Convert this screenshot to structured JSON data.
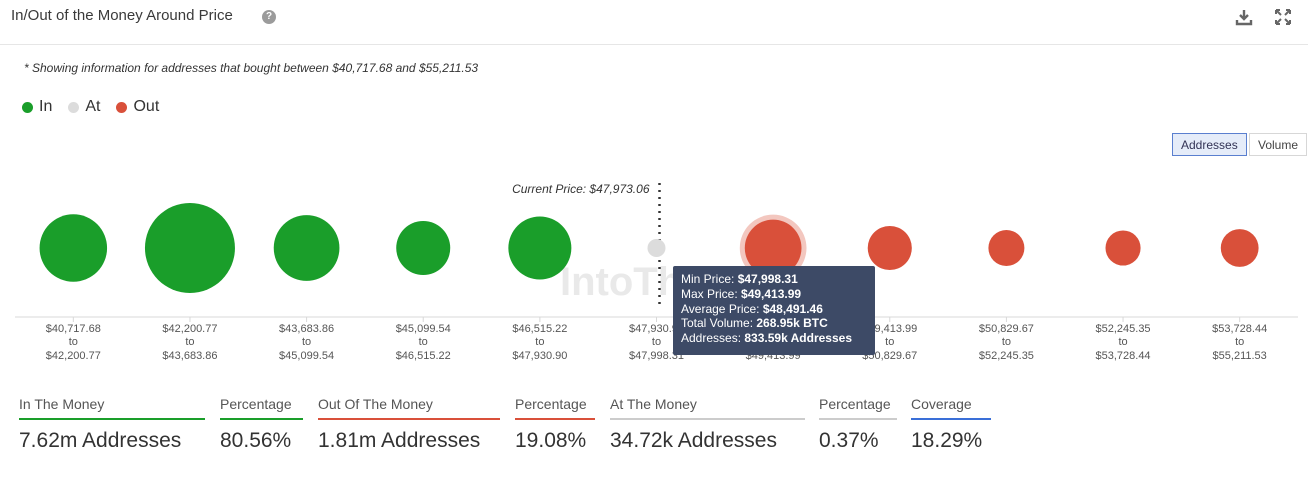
{
  "header": {
    "title": "In/Out of the Money Around Price",
    "help_icon": "question-circle-icon",
    "download_icon": "download-icon",
    "expand_icon": "expand-icon"
  },
  "note": "* Showing information for addresses that bought between $40,717.68 and $55,211.53",
  "legend": [
    {
      "label": "In",
      "color": "#1a9e2a"
    },
    {
      "label": "At",
      "color": "#dcdcdc"
    },
    {
      "label": "Out",
      "color": "#d9503a"
    }
  ],
  "toggles": {
    "addresses": "Addresses",
    "volume": "Volume",
    "active": "addresses"
  },
  "watermark": "IntoThe",
  "chart_data": {
    "type": "bubble",
    "current_price_label": "Current Price: $47,973.06",
    "current_price": 47973.06,
    "clusters": [
      {
        "from": "$40,717.68",
        "to": "$42,200.77",
        "status": "in",
        "size": 0.75
      },
      {
        "from": "$42,200.77",
        "to": "$43,683.86",
        "status": "in",
        "size": 1.0
      },
      {
        "from": "$43,683.86",
        "to": "$45,099.54",
        "status": "in",
        "size": 0.73
      },
      {
        "from": "$45,099.54",
        "to": "$46,515.22",
        "status": "in",
        "size": 0.6
      },
      {
        "from": "$46,515.22",
        "to": "$47,930.90",
        "status": "in",
        "size": 0.7
      },
      {
        "from": "$47,930.90",
        "to": "$47,998.31",
        "status": "at",
        "size": 0.2
      },
      {
        "from": "$47,998.31",
        "to": "$49,413.99",
        "status": "out",
        "size": 0.63,
        "highlighted": true
      },
      {
        "from": "$49,413.99",
        "to": "$50,829.67",
        "status": "out",
        "size": 0.49
      },
      {
        "from": "$50,829.67",
        "to": "$52,245.35",
        "status": "out",
        "size": 0.4
      },
      {
        "from": "$52,245.35",
        "to": "$53,728.44",
        "status": "out",
        "size": 0.39
      },
      {
        "from": "$53,728.44",
        "to": "$55,211.53",
        "status": "out",
        "size": 0.42
      }
    ],
    "to_word": "to"
  },
  "tooltip": {
    "min_label": "Min Price: ",
    "min_value": "$47,998.31",
    "max_label": "Max Price: ",
    "max_value": "$49,413.99",
    "avg_label": "Average Price: ",
    "avg_value": "$48,491.46",
    "vol_label": "Total Volume: ",
    "vol_value": "268.95k BTC",
    "addr_label": "Addresses: ",
    "addr_value": "833.59k Addresses"
  },
  "stats": [
    {
      "label": "In The Money",
      "value": "7.62m Addresses",
      "color": "#1a9e2a"
    },
    {
      "label": "Percentage",
      "value": "80.56%",
      "color": "#1a9e2a"
    },
    {
      "label": "Out Of The Money",
      "value": "1.81m Addresses",
      "color": "#d9503a"
    },
    {
      "label": "Percentage",
      "value": "19.08%",
      "color": "#d9503a"
    },
    {
      "label": "At The Money",
      "value": "34.72k Addresses",
      "color": "#cccccc"
    },
    {
      "label": "Percentage",
      "value": "0.37%",
      "color": "#cccccc"
    },
    {
      "label": "Coverage",
      "value": "18.29%",
      "color": "#3a6fd8"
    }
  ]
}
